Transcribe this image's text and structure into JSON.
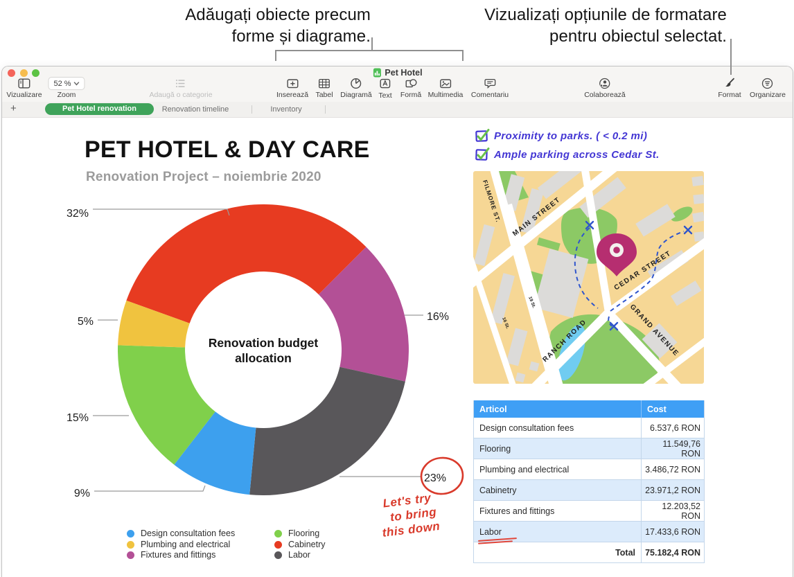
{
  "callouts": {
    "left": {
      "line1": "Adăugați obiecte precum",
      "line2": "forme și diagrame."
    },
    "right": {
      "line1": "Vizualizați opțiunile de formatare",
      "line2": "pentru obiectul selectat."
    }
  },
  "window": {
    "title": "Pet Hotel",
    "toolbar": {
      "view_label": "Vizualizare",
      "zoom_value": "52 %",
      "zoom_label": "Zoom",
      "add_category_label": "Adaugă o categorie",
      "insert_label": "Inserează",
      "table_label": "Tabel",
      "chart_label": "Diagramă",
      "text_label": "Text",
      "shape_label": "Formă",
      "media_label": "Multimedia",
      "comment_label": "Comentariu",
      "collaborate_label": "Colaborează",
      "format_label": "Format",
      "organize_label": "Organizare"
    },
    "tabs": {
      "add_button": "+",
      "items": [
        "Pet Hotel renovation",
        "Renovation timeline",
        "Inventory"
      ],
      "active": "Pet Hotel renovation"
    }
  },
  "sheet": {
    "title": "PET HOTEL & DAY CARE",
    "subtitle": "Renovation Project – noiembrie 2020"
  },
  "chart_data": {
    "type": "pie",
    "subtype": "donut",
    "title": "Renovation budget allocation",
    "center_label_lines": [
      "Renovation budget",
      "allocation"
    ],
    "start_angle_deg": -70.2,
    "segments": [
      {
        "label": "Cabinetry",
        "pct": 32,
        "value_label": "32%",
        "color": "#e73b21"
      },
      {
        "label": "Fixtures and fittings",
        "pct": 16,
        "value_label": "16%",
        "color": "#b35096"
      },
      {
        "label": "Labor",
        "pct": 23,
        "value_label": "23%",
        "color": "#59575a"
      },
      {
        "label": "Design consultation fees",
        "pct": 9,
        "value_label": "9%",
        "color": "#3da0ee"
      },
      {
        "label": "Flooring",
        "pct": 15,
        "value_label": "15%",
        "color": "#80d04b"
      },
      {
        "label": "Plumbing and electrical",
        "pct": 5,
        "value_label": "5%",
        "color": "#f0c33f"
      }
    ],
    "legend_columns": [
      [
        {
          "label": "Design consultation fees",
          "color": "#3da0ee"
        },
        {
          "label": "Plumbing and electrical",
          "color": "#f0c33f"
        },
        {
          "label": "Fixtures and fittings",
          "color": "#b35096"
        }
      ],
      [
        {
          "label": "Flooring",
          "color": "#80d04b"
        },
        {
          "label": "Cabinetry",
          "color": "#e73b21"
        },
        {
          "label": "Labor",
          "color": "#59575a"
        }
      ]
    ],
    "legend_position": "bottom"
  },
  "checklist": [
    {
      "text": "Proximity to parks. ( < 0.2 mi)"
    },
    {
      "text": "Ample parking across Cedar St."
    }
  ],
  "map": {
    "street_labels": [
      "FILMORE ST.",
      "MAIN STREET",
      "CEDAR STREET",
      "RANCH ROAD",
      "GRAND AVENUE",
      "19 St.",
      "16 St."
    ]
  },
  "table": {
    "headers": [
      "Articol",
      "Cost"
    ],
    "rows": [
      [
        "Design consultation fees",
        "6.537,6 RON"
      ],
      [
        "Flooring",
        "11.549,76 RON"
      ],
      [
        "Plumbing and electrical",
        "3.486,72 RON"
      ],
      [
        "Cabinetry",
        "23.971,2 RON"
      ],
      [
        "Fixtures and fittings",
        "12.203,52 RON"
      ],
      [
        "Labor",
        "17.433,6 RON"
      ]
    ],
    "total_label": "Total",
    "total_value": "75.182,4 RON"
  },
  "annotations": {
    "note_lines": [
      "Let's try",
      "to bring",
      "this down"
    ],
    "circled_value": "23%",
    "underlined_item": "Labor",
    "ink_blue": "#4336d4",
    "ink_red": "#d93a2b",
    "check_green": "#68c14c"
  },
  "colors": {
    "tab_active_green": "#3fa35a",
    "table_header_blue": "#3f9ff5",
    "table_alt_row": "#dcebfb",
    "map_land": "#f6d795",
    "map_park": "#8cc965",
    "map_water": "#70ccf1",
    "map_building": "#dcdbd9",
    "map_pin": "#b62e70"
  }
}
